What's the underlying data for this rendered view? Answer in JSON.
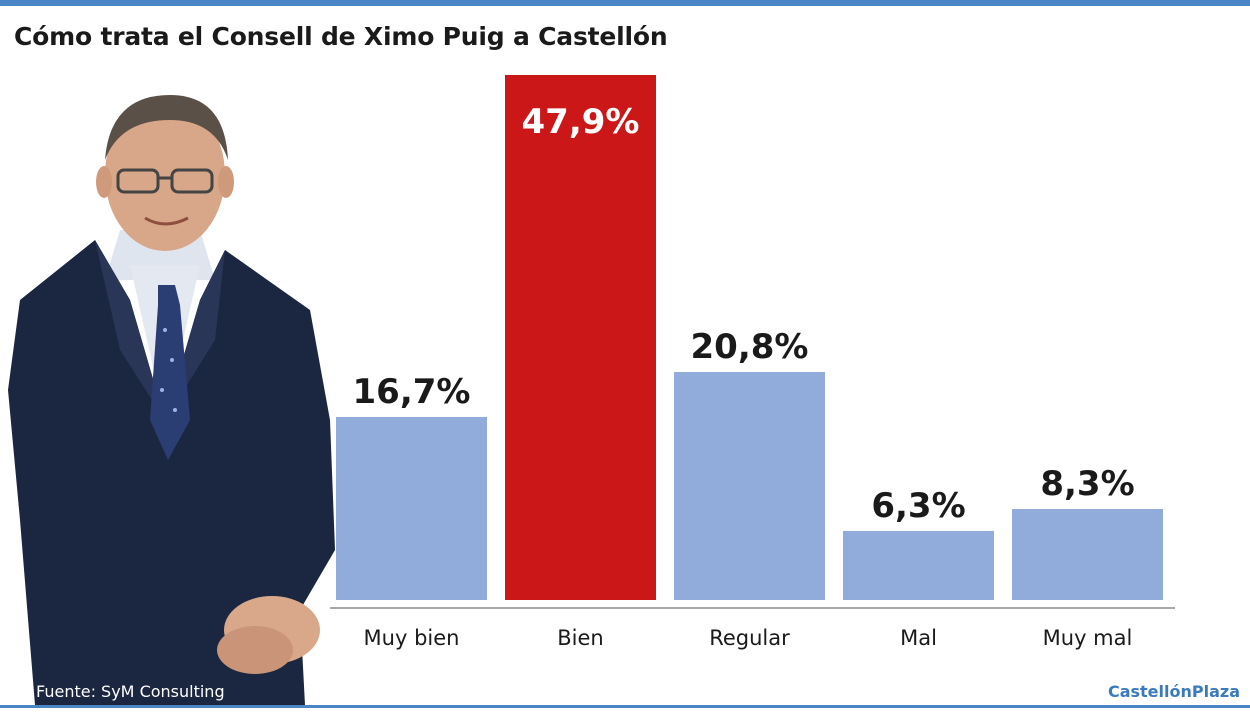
{
  "header": {
    "title": "Cómo trata el Consell de Ximo Puig a Castellón"
  },
  "footer": {
    "source": "Fuente: SyM Consulting",
    "brand": "CastellónPlaza"
  },
  "colors": {
    "accent": "#4a86c5",
    "bar_default": "#91acdb",
    "bar_highlight": "#cc1719"
  },
  "photo": {
    "subject": "person-in-suit"
  },
  "chart_data": {
    "type": "bar",
    "title": "Cómo trata el Consell de Ximo Puig a Castellón",
    "categories": [
      "Muy bien",
      "Bien",
      "Regular",
      "Mal",
      "Muy mal"
    ],
    "values": [
      16.7,
      47.9,
      20.8,
      6.3,
      8.3
    ],
    "value_labels": [
      "16,7%",
      "47,9%",
      "20,8%",
      "6,3%",
      "8,3%"
    ],
    "highlight_index": 1,
    "ylim": [
      0,
      47.9
    ],
    "grid": false,
    "xlabel": "",
    "ylabel": ""
  }
}
